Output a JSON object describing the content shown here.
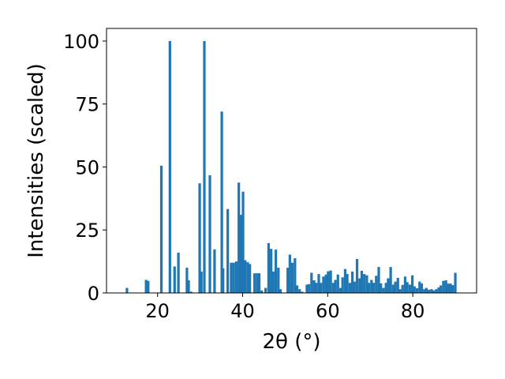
{
  "chart_data": {
    "type": "bar",
    "title": "",
    "xlabel": "2θ (°)",
    "ylabel": "Intensities (scaled)",
    "xlim": [
      8,
      95
    ],
    "ylim": [
      0,
      105
    ],
    "xticks": [
      "20",
      "40",
      "60",
      "80"
    ],
    "yticks": [
      "0",
      "25",
      "50",
      "75",
      "100"
    ],
    "grid": false,
    "legend": "none",
    "bar_width": 0.6,
    "color": "#1f77b4",
    "x": [
      12.8,
      17.3,
      17.8,
      20.9,
      22.9,
      24.0,
      24.9,
      26.9,
      27.3,
      27.9,
      29.9,
      30.3,
      31.0,
      32.3,
      33.4,
      35.1,
      35.4,
      36.5,
      37.3,
      37.9,
      38.5,
      39.1,
      39.6,
      40.1,
      40.6,
      41.2,
      41.7,
      42.8,
      43.4,
      43.9,
      44.5,
      45.4,
      46.1,
      46.7,
      47.2,
      47.8,
      48.4,
      48.9,
      50.6,
      51.1,
      51.7,
      52.3,
      52.8,
      53.4,
      54.0,
      55.1,
      55.6,
      56.2,
      56.8,
      57.3,
      57.9,
      58.4,
      59.0,
      59.6,
      60.1,
      60.7,
      61.3,
      61.8,
      62.4,
      63.0,
      63.5,
      64.1,
      64.6,
      65.2,
      65.8,
      66.3,
      66.9,
      67.5,
      68.0,
      68.6,
      69.2,
      69.7,
      70.3,
      70.8,
      71.4,
      72.0,
      72.5,
      73.1,
      73.7,
      74.2,
      74.8,
      75.4,
      75.9,
      76.5,
      77.0,
      77.6,
      78.2,
      78.7,
      79.3,
      79.9,
      80.4,
      81.0,
      81.6,
      82.1,
      82.7,
      83.2,
      83.8,
      84.4,
      84.9,
      85.5,
      86.1,
      86.6,
      87.2,
      87.8,
      88.3,
      88.9,
      89.4,
      90.0
    ],
    "values": [
      2,
      5.2,
      4.8,
      50.5,
      100,
      10.5,
      16,
      10,
      5,
      0.5,
      43.5,
      8.5,
      100,
      46.7,
      17.3,
      72,
      9.8,
      33.3,
      12,
      12,
      12.5,
      43.8,
      31,
      40.2,
      13,
      12.2,
      11.5,
      7.8,
      7.8,
      7.8,
      1,
      2,
      19.8,
      17.5,
      8.5,
      17.2,
      10,
      1.5,
      10,
      15.2,
      12,
      13.8,
      3,
      1.5,
      0.5,
      3.3,
      3.5,
      8,
      5,
      4,
      7.5,
      4,
      6.5,
      7.3,
      8.6,
      8.9,
      4,
      5.2,
      7.3,
      2,
      6.2,
      9.5,
      7.5,
      4,
      8.5,
      4.5,
      13.5,
      5.8,
      8.8,
      7.5,
      7,
      4,
      5.2,
      4,
      6.8,
      10.3,
      3.8,
      2,
      4,
      5.8,
      10.3,
      3.3,
      4.5,
      6,
      1.5,
      3.2,
      6.5,
      4.3,
      3.3,
      7,
      2.6,
      1.9,
      4.5,
      3.8,
      1.5,
      2,
      1.3,
      1.5,
      1,
      1.5,
      2.2,
      3,
      4.8,
      5,
      3.7,
      3.7,
      3.1,
      8
    ]
  }
}
